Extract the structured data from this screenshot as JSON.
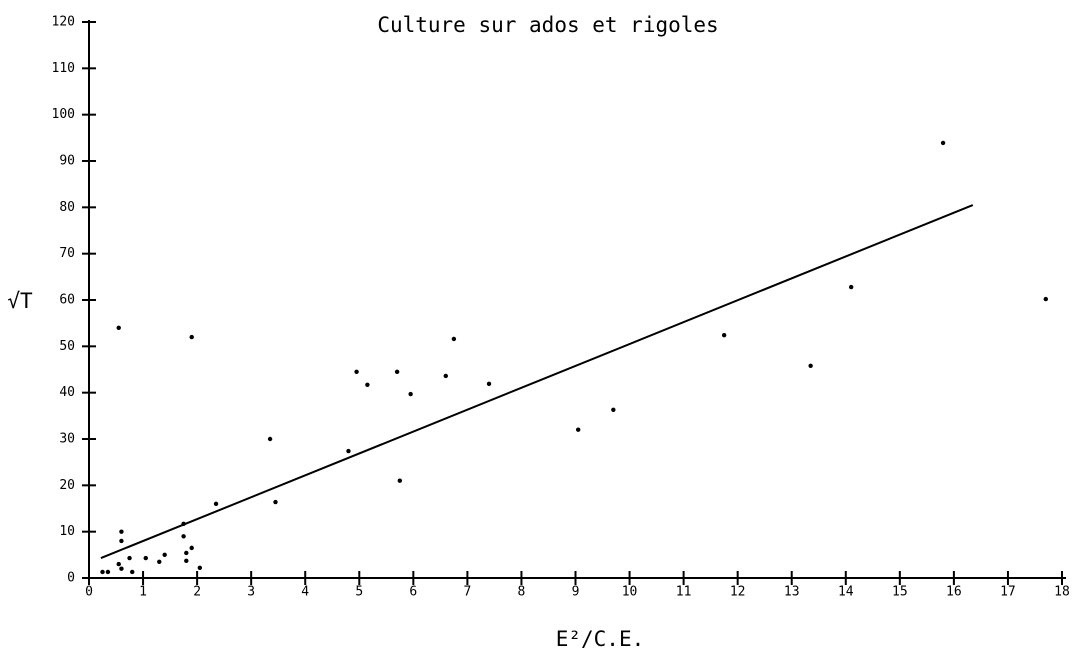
{
  "chart_data": {
    "type": "scatter",
    "title": "Culture sur ados et rigoles",
    "xlabel": "E²/C.E.",
    "ylabel": "√T",
    "x": [
      0.55,
      0.6,
      0.6,
      0.55,
      0.6,
      0.25,
      0.35,
      0.75,
      0.8,
      1.05,
      1.3,
      1.4,
      1.75,
      1.75,
      1.8,
      1.9,
      1.8,
      2.05,
      1.9,
      2.35,
      3.35,
      3.45,
      4.8,
      4.95,
      5.15,
      5.7,
      5.75,
      5.95,
      6.6,
      6.75,
      7.4,
      9.05,
      9.7,
      11.75,
      13.35,
      14.1,
      15.8,
      17.7
    ],
    "y": [
      54,
      10,
      8,
      3,
      2,
      1.3,
      1.3,
      4.3,
      1.3,
      4.3,
      3.5,
      5,
      11.7,
      9,
      5.4,
      6.5,
      3.7,
      2.2,
      52,
      16,
      30,
      16.4,
      27.4,
      44.5,
      41.7,
      44.5,
      21,
      39.7,
      43.6,
      51.6,
      41.9,
      32,
      36.3,
      52.4,
      45.8,
      62.8,
      93.9,
      60.2
    ],
    "fit_line": {
      "x": [
        0.22,
        16.35
      ],
      "y": [
        4.3,
        80.5
      ]
    },
    "color": "#000000",
    "xlim": [
      0,
      18
    ],
    "ylim": [
      0,
      120
    ],
    "xticks": [
      0,
      1,
      2,
      3,
      4,
      5,
      6,
      7,
      8,
      9,
      10,
      11,
      12,
      13,
      14,
      15,
      16,
      17,
      18
    ],
    "yticks": [
      0,
      10,
      20,
      30,
      40,
      50,
      60,
      70,
      80,
      90,
      100,
      110,
      120
    ]
  }
}
